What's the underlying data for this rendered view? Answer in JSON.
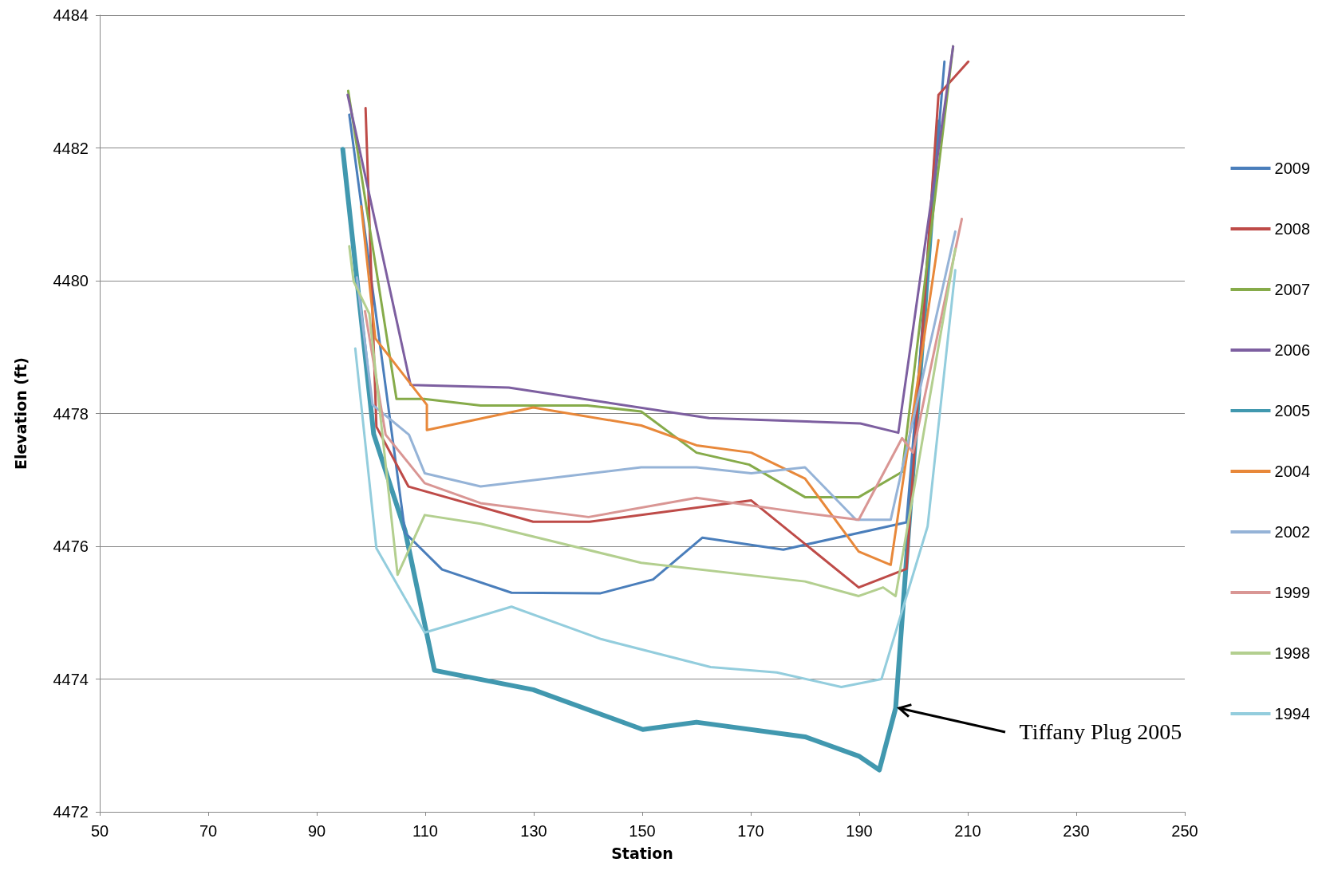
{
  "chart_data": {
    "type": "line",
    "xlabel": "Station",
    "ylabel": "Elevation (ft)",
    "xlim": [
      50,
      250
    ],
    "xticks": [
      50,
      70,
      90,
      110,
      130,
      150,
      170,
      190,
      210,
      230,
      250
    ],
    "ylim": [
      4472,
      4484
    ],
    "yticks": [
      4472,
      4474,
      4476,
      4478,
      4480,
      4482,
      4484
    ],
    "grid": "y",
    "legend": "right",
    "marker": "none",
    "line_style": "solid",
    "annotations": [
      {
        "text": "Tiffany Plug 2005",
        "x": 196.7,
        "y": 4473.56
      }
    ],
    "series": [
      {
        "name": "2009",
        "color": "#4a7ebb",
        "x": [
          96,
          106.3,
          113.1,
          125.9,
          142.2,
          152,
          161.1,
          176,
          198.7,
          205.7
        ],
        "values": [
          4482.5,
          4476.2,
          4475.65,
          4475.3,
          4475.29,
          4475.5,
          4476.13,
          4475.95,
          4476.36,
          4483.3
        ]
      },
      {
        "name": "2008",
        "color": "#be4b48",
        "x": [
          99,
          101,
          106.9,
          129.9,
          140.3,
          170.1,
          189.9,
          198.7,
          204.6,
          210.1
        ],
        "values": [
          4482.6,
          4477.8,
          4476.9,
          4476.37,
          4476.37,
          4476.69,
          4475.38,
          4475.66,
          4482.8,
          4483.3
        ]
      },
      {
        "name": "2007",
        "color": "#86ab4a",
        "x": [
          95.8,
          104.7,
          109.8,
          120.2,
          139.9,
          149.8,
          160,
          169.7,
          180,
          189.9,
          197.9,
          207.3
        ],
        "values": [
          4482.86,
          4478.22,
          4478.22,
          4478.12,
          4478.12,
          4478.03,
          4477.41,
          4477.23,
          4476.74,
          4476.74,
          4477.12,
          4483.53
        ]
      },
      {
        "name": "2006",
        "color": "#7d5fa0",
        "x": [
          95.7,
          107.3,
          125.4,
          162.3,
          190.2,
          197.2,
          207.3
        ],
        "values": [
          4482.8,
          4478.43,
          4478.39,
          4477.93,
          4477.85,
          4477.71,
          4483.53
        ]
      },
      {
        "name": "2005",
        "color": "#4198af",
        "x": [
          94.8,
          100.5,
          106.3,
          111.7,
          129.9,
          150.1,
          160,
          180,
          189.9,
          193.7,
          196.7,
          204.6
        ],
        "values": [
          4481.98,
          4477.69,
          4476.23,
          4474.13,
          4473.84,
          4473.24,
          4473.35,
          4473.13,
          4472.84,
          4472.63,
          4473.56,
          4482.39
        ]
      },
      {
        "name": "2004",
        "color": "#e8883a",
        "x": [
          98.2,
          100.8,
          110.3,
          110.3,
          129.9,
          149.8,
          160,
          170.1,
          180,
          189.9,
          195.8,
          204.6
        ],
        "values": [
          4481.12,
          4479.13,
          4478.13,
          4477.75,
          4478.09,
          4477.82,
          4477.52,
          4477.41,
          4477.02,
          4475.92,
          4475.72,
          4480.61
        ]
      },
      {
        "name": "2002",
        "color": "#95b3d7",
        "x": [
          97.4,
          100.3,
          107,
          109.9,
          120.2,
          149.8,
          160,
          170.1,
          180,
          189.4,
          195.8,
          207.7
        ],
        "values": [
          4480.05,
          4478.13,
          4477.68,
          4477.1,
          4476.9,
          4477.19,
          4477.19,
          4477.1,
          4477.19,
          4476.4,
          4476.4,
          4480.74
        ]
      },
      {
        "name": "1999",
        "color": "#d99694",
        "x": [
          98.9,
          102.7,
          109.9,
          120.2,
          140.1,
          160,
          180,
          189.9,
          197.9,
          199.9,
          208.9
        ],
        "values": [
          4479.54,
          4477.68,
          4476.95,
          4476.65,
          4476.44,
          4476.73,
          4476.5,
          4476.4,
          4477.63,
          4477.41,
          4480.93
        ]
      },
      {
        "name": "1998",
        "color": "#b3cf8f",
        "x": [
          96,
          96.8,
          99.7,
          104.9,
          109.9,
          120.2,
          149.8,
          180,
          189.9,
          194.4,
          196.7,
          207.7
        ],
        "values": [
          4480.52,
          4479.99,
          4479.5,
          4475.57,
          4476.47,
          4476.34,
          4475.75,
          4475.47,
          4475.25,
          4475.38,
          4475.25,
          4480.48
        ]
      },
      {
        "name": "1994",
        "color": "#93cddd",
        "x": [
          97.1,
          101,
          109.9,
          125.9,
          142.5,
          162.6,
          174.8,
          186.7,
          194.1,
          202.6,
          207.7
        ],
        "values": [
          4478.98,
          4475.97,
          4474.7,
          4475.09,
          4474.6,
          4474.18,
          4474.1,
          4473.88,
          4474.0,
          4476.3,
          4480.16
        ]
      }
    ]
  }
}
